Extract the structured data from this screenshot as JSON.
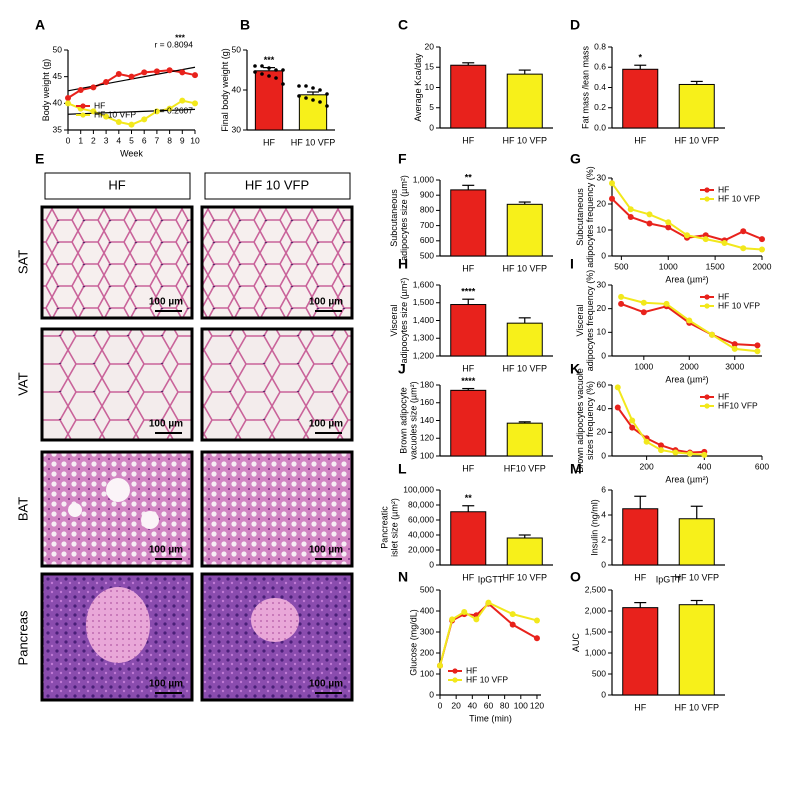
{
  "chart_data": [
    {
      "panel": "A",
      "type": "line",
      "ylabel": [
        "Body weight (g)"
      ],
      "xlabel": "Week",
      "x": [
        0,
        1,
        2,
        3,
        4,
        5,
        6,
        7,
        8,
        9,
        10
      ],
      "xlim": [
        0,
        10
      ],
      "xticks": [
        0,
        1,
        2,
        3,
        4,
        5,
        6,
        7,
        8,
        9,
        10
      ],
      "ylim": [
        35,
        50
      ],
      "yticks": [
        35,
        40,
        45,
        50
      ],
      "legend": "lower left",
      "regression": true,
      "annotations": [
        "***",
        "r = 0.8094",
        "r = 0.2607"
      ],
      "series": [
        {
          "name": "HF",
          "color": "#e8221c",
          "values": [
            41,
            42.5,
            43,
            44,
            45.5,
            45,
            45.8,
            46,
            46.2,
            45.8,
            45.3
          ]
        },
        {
          "name": "HF 10 VFP",
          "color": "#f2e81c",
          "values": [
            40,
            39,
            38.5,
            37.5,
            36.5,
            36,
            37,
            38.5,
            39,
            40.5,
            40
          ]
        }
      ]
    },
    {
      "panel": "B",
      "type": "bar",
      "ylabel": [
        "Final body weight (g)"
      ],
      "categories": [
        "HF",
        "HF 10 VFP"
      ],
      "values": [
        44.8,
        38.8
      ],
      "errors": [
        0.8,
        0.7
      ],
      "stars": [
        "***",
        null
      ],
      "colors": [
        "#e8221c",
        "#f7f01a"
      ],
      "points": [
        [
          46,
          46,
          45.5,
          45,
          45,
          44.5,
          44,
          43.5,
          43,
          41.5
        ],
        [
          41,
          41,
          40.5,
          40,
          39,
          38.5,
          38,
          37.5,
          37,
          36
        ]
      ],
      "ylim": [
        30,
        50
      ],
      "yticks": [
        30,
        40,
        50
      ]
    },
    {
      "panel": "C",
      "type": "bar",
      "ylabel": [
        "Average Kca/day"
      ],
      "categories": [
        "HF",
        "HF 10 VFP"
      ],
      "values": [
        15.5,
        13.3
      ],
      "errors": [
        0.6,
        1.0
      ],
      "stars": [
        null,
        null
      ],
      "colors": [
        "#e8221c",
        "#f7f01a"
      ],
      "ylim": [
        0,
        20
      ],
      "yticks": [
        0,
        5,
        10,
        15,
        20
      ]
    },
    {
      "panel": "D",
      "type": "bar",
      "ylabel": [
        "Fat mass /lean mass"
      ],
      "categories": [
        "HF",
        "HF 10 VFP"
      ],
      "values": [
        0.58,
        0.43
      ],
      "errors": [
        0.04,
        0.03
      ],
      "stars": [
        "*",
        null
      ],
      "colors": [
        "#e8221c",
        "#f7f01a"
      ],
      "ylim": [
        0,
        0.8
      ],
      "yticks": [
        {
          "value": 0,
          "label": "0.0"
        },
        0.2,
        0.4,
        0.6,
        0.8
      ]
    },
    {
      "panel": "F",
      "type": "bar",
      "ylabel": [
        "Subcutaneous",
        "adipocytes size (µm²)"
      ],
      "categories": [
        "HF",
        "HF 10 VFP"
      ],
      "values": [
        935,
        840
      ],
      "errors": [
        30,
        15
      ],
      "stars": [
        "**",
        null
      ],
      "colors": [
        "#e8221c",
        "#f7f01a"
      ],
      "ylim": [
        500,
        1000
      ],
      "yticks": [
        500,
        600,
        700,
        800,
        900,
        {
          "value": 1000,
          "label": "1,000"
        }
      ]
    },
    {
      "panel": "G",
      "type": "line",
      "ylabel": [
        "Subcutaneous",
        "adipocytes frequency (%)"
      ],
      "xlabel": "Area (µm²)",
      "x": [
        400,
        600,
        800,
        1000,
        1200,
        1400,
        1600,
        1800,
        2000
      ],
      "xlim": [
        400,
        2000
      ],
      "xticks": [
        500,
        1000,
        1500,
        2000
      ],
      "ylim": [
        0,
        30
      ],
      "yticks": [
        0,
        10,
        20,
        30
      ],
      "legend": "upper right",
      "series": [
        {
          "name": "HF",
          "color": "#e8221c",
          "values": [
            22,
            15,
            12.5,
            11,
            7,
            8,
            6,
            9.5,
            6.5
          ]
        },
        {
          "name": "HF 10 VFP",
          "color": "#f2e81c",
          "values": [
            28,
            18,
            16,
            13,
            8,
            6.5,
            5,
            3,
            2.5
          ]
        }
      ]
    },
    {
      "panel": "H",
      "type": "bar",
      "ylabel": [
        "Visceral",
        "adipocytes size (µm²)"
      ],
      "categories": [
        "HF",
        "HF 10 VFP"
      ],
      "values": [
        1490,
        1385
      ],
      "errors": [
        30,
        30
      ],
      "stars": [
        "****",
        null
      ],
      "colors": [
        "#e8221c",
        "#f7f01a"
      ],
      "ylim": [
        1200,
        1600
      ],
      "yticks": [
        {
          "value": 1200,
          "label": "1,200"
        },
        {
          "value": 1300,
          "label": "1,300"
        },
        {
          "value": 1400,
          "label": "1,400"
        },
        {
          "value": 1500,
          "label": "1,500"
        },
        {
          "value": 1600,
          "label": "1,600"
        }
      ]
    },
    {
      "panel": "I",
      "type": "line",
      "ylabel": [
        "Visceral",
        "adipocytes frequency (%)"
      ],
      "xlabel": "Area (µm²)",
      "x": [
        500,
        1000,
        1500,
        2000,
        2500,
        3000,
        3500
      ],
      "xlim": [
        300,
        3600
      ],
      "xticks": [
        1000,
        2000,
        3000
      ],
      "ylim": [
        0,
        30
      ],
      "yticks": [
        0,
        10,
        20,
        30
      ],
      "legend": "upper right",
      "series": [
        {
          "name": "HF",
          "color": "#e8221c",
          "values": [
            22,
            18.5,
            21,
            14,
            9,
            5,
            4.5
          ]
        },
        {
          "name": "HF 10 VFP",
          "color": "#f2e81c",
          "values": [
            25,
            22.5,
            22,
            15,
            9,
            3,
            2
          ]
        }
      ]
    },
    {
      "panel": "J",
      "type": "bar",
      "ylabel": [
        "Brown adipocyte",
        "vacuoles size (µm²)"
      ],
      "categories": [
        "HF",
        "HF10 VFP"
      ],
      "values": [
        174,
        137
      ],
      "errors": [
        2,
        1.5
      ],
      "stars": [
        "****",
        null
      ],
      "colors": [
        "#e8221c",
        "#f7f01a"
      ],
      "ylim": [
        100,
        180
      ],
      "yticks": [
        100,
        120,
        140,
        160,
        180
      ]
    },
    {
      "panel": "K",
      "type": "line",
      "ylabel": [
        "Brown adipocytes vacuole",
        "sizes frequency (%)"
      ],
      "xlabel": "Area (µm²)",
      "x": [
        100,
        150,
        200,
        250,
        300,
        350,
        400
      ],
      "xlim": [
        80,
        600
      ],
      "xticks": [
        200,
        400,
        600
      ],
      "ylim": [
        0,
        60
      ],
      "yticks": [
        0,
        20,
        40,
        60
      ],
      "legend": "upper right",
      "series": [
        {
          "name": "HF",
          "color": "#e8221c",
          "values": [
            41,
            24,
            15,
            9,
            5,
            3,
            3.5
          ]
        },
        {
          "name": "HF10 VFP",
          "color": "#f2e81c",
          "values": [
            58,
            30,
            12,
            5,
            3,
            2,
            1
          ]
        }
      ]
    },
    {
      "panel": "L",
      "type": "bar",
      "ylabel": [
        "Pancreatic",
        "islet size (µm²)"
      ],
      "categories": [
        "HF",
        "HF 10 VFP"
      ],
      "values": [
        71000,
        36000
      ],
      "errors": [
        8000,
        4000
      ],
      "stars": [
        "**",
        null
      ],
      "colors": [
        "#e8221c",
        "#f7f01a"
      ],
      "ylim": [
        0,
        100000
      ],
      "yticks": [
        0,
        {
          "value": 20000,
          "label": "20,000"
        },
        {
          "value": 40000,
          "label": "40,000"
        },
        {
          "value": 60000,
          "label": "60,000"
        },
        {
          "value": 80000,
          "label": "80,000"
        },
        {
          "value": 100000,
          "label": "100,000"
        }
      ]
    },
    {
      "panel": "M",
      "type": "bar",
      "ylabel": [
        "Insulin (ng/ml)"
      ],
      "categories": [
        "HF",
        "HF 10 VFP"
      ],
      "values": [
        4.5,
        3.7
      ],
      "errors": [
        1.0,
        1.0
      ],
      "stars": [
        null,
        null
      ],
      "colors": [
        "#e8221c",
        "#f7f01a"
      ],
      "ylim": [
        0,
        6
      ],
      "yticks": [
        0,
        2,
        4,
        6
      ]
    },
    {
      "panel": "N",
      "type": "line",
      "title": "IpGTT",
      "ylabel": [
        "Glucose (mg/dL)"
      ],
      "xlabel": "Time (min)",
      "x": [
        0,
        15,
        30,
        45,
        60,
        90,
        120
      ],
      "xlim": [
        0,
        125
      ],
      "xticks": [
        0,
        20,
        40,
        60,
        80,
        100,
        120
      ],
      "ylim": [
        0,
        500
      ],
      "yticks": [
        0,
        100,
        200,
        300,
        400,
        500
      ],
      "legend": "lower left",
      "series": [
        {
          "name": "HF",
          "color": "#e8221c",
          "values": [
            140,
            355,
            385,
            380,
            435,
            335,
            270
          ]
        },
        {
          "name": "HF 10 VFP",
          "color": "#f2e81c",
          "values": [
            140,
            360,
            395,
            360,
            440,
            385,
            355
          ]
        }
      ]
    },
    {
      "panel": "O",
      "type": "bar",
      "title": "IpGTT",
      "ylabel": [
        "AUC"
      ],
      "categories": [
        "HF",
        "HF 10 VFP"
      ],
      "values": [
        2080,
        2150
      ],
      "errors": [
        120,
        100
      ],
      "stars": [
        null,
        null
      ],
      "colors": [
        "#e8221c",
        "#f7f01a"
      ],
      "ylim": [
        0,
        2500
      ],
      "yticks": [
        0,
        500,
        {
          "value": 1000,
          "label": "1,000"
        },
        {
          "value": 1500,
          "label": "1,500"
        },
        {
          "value": 2000,
          "label": "2,000"
        },
        {
          "value": 2500,
          "label": "2,500"
        }
      ]
    }
  ],
  "image_panel": {
    "panel": "E",
    "columns": [
      "HF",
      "HF 10 VFP"
    ],
    "rows": [
      "SAT",
      "VAT",
      "BAT",
      "Pancreas"
    ],
    "scale_bar": "100 µm"
  }
}
